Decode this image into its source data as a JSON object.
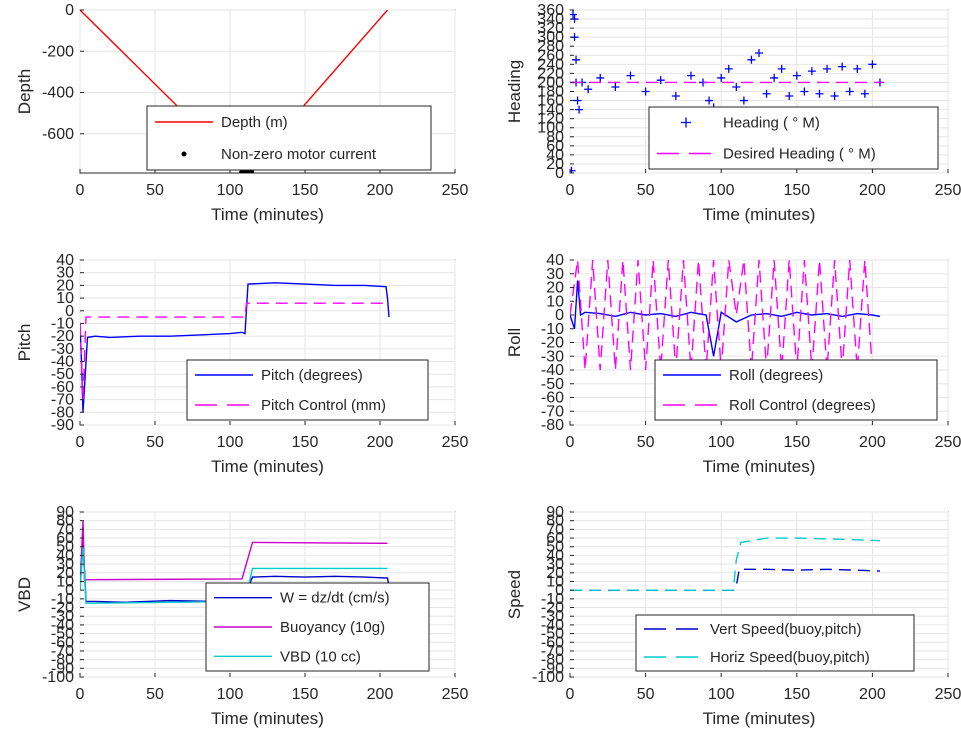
{
  "charts": [
    {
      "id": "depth",
      "type": "line",
      "xlabel": "Time (minutes)",
      "ylabel": "Depth",
      "xlim": [
        0,
        250
      ],
      "ylim": [
        -790,
        0
      ],
      "xticks": [
        0,
        50,
        100,
        150,
        200,
        250
      ],
      "yticks": [
        -600,
        -400,
        -200,
        0
      ],
      "grid": true,
      "legend": {
        "position": "bottom-right"
      },
      "series": [
        {
          "name": "Depth (m)",
          "color": "#ff0000",
          "style": "solid",
          "marker": "none",
          "x": [
            0,
            110,
            205
          ],
          "y": [
            0,
            -790,
            0
          ]
        },
        {
          "name": "Non-zero motor current",
          "color": "#000000",
          "style": "none",
          "marker": "dot",
          "x": [
            108,
            109,
            110,
            111,
            112,
            113,
            114
          ],
          "y": [
            -788,
            -790,
            -790,
            -790,
            -788,
            -785,
            -782
          ]
        }
      ]
    },
    {
      "id": "heading",
      "type": "line",
      "xlabel": "Time (minutes)",
      "ylabel": "Heading",
      "xlim": [
        0,
        250
      ],
      "ylim": [
        0,
        360
      ],
      "xticks": [
        0,
        50,
        100,
        150,
        200,
        250
      ],
      "yticks": [
        0,
        20,
        40,
        60,
        80,
        100,
        120,
        140,
        160,
        180,
        200,
        220,
        240,
        260,
        280,
        300,
        320,
        340,
        360
      ],
      "grid": true,
      "legend": {
        "position": "bottom-right"
      },
      "series": [
        {
          "name": "Heading ( ° M)",
          "color": "#0000ff",
          "style": "none",
          "marker": "plus",
          "x": [
            1,
            2,
            3,
            3,
            4,
            4,
            5,
            6,
            8,
            12,
            20,
            30,
            40,
            50,
            60,
            70,
            80,
            88,
            92,
            95,
            100,
            105,
            110,
            115,
            120,
            125,
            130,
            135,
            140,
            145,
            150,
            155,
            160,
            165,
            170,
            175,
            180,
            185,
            190,
            195,
            200,
            205
          ],
          "y": [
            5,
            350,
            340,
            300,
            250,
            200,
            160,
            140,
            200,
            185,
            210,
            190,
            215,
            180,
            205,
            170,
            215,
            200,
            160,
            145,
            210,
            230,
            190,
            160,
            250,
            265,
            175,
            210,
            230,
            170,
            215,
            180,
            225,
            175,
            230,
            170,
            235,
            180,
            230,
            175,
            240,
            200
          ]
        },
        {
          "name": "Desired Heading ( ° M)",
          "color": "#ff00ff",
          "style": "dashed",
          "marker": "none",
          "x": [
            0,
            207
          ],
          "y": [
            200,
            200
          ]
        }
      ]
    },
    {
      "id": "pitch",
      "type": "line",
      "xlabel": "Time (minutes)",
      "ylabel": "Pitch",
      "xlim": [
        0,
        250
      ],
      "ylim": [
        -90,
        40
      ],
      "xticks": [
        0,
        50,
        100,
        150,
        200,
        250
      ],
      "yticks": [
        -90,
        -80,
        -70,
        -60,
        -50,
        -40,
        -30,
        -20,
        -10,
        0,
        10,
        20,
        30,
        40
      ],
      "ytickLabels": [
        "-90",
        "-80",
        "-70",
        "-60",
        "-50",
        "-40",
        "-30",
        "-20",
        "-10",
        "0",
        "10",
        "20",
        "30",
        "40"
      ],
      "grid": true,
      "legend": {
        "position": "bottom-right"
      },
      "series": [
        {
          "name": "Pitch (degrees)",
          "color": "#0000ff",
          "style": "solid",
          "marker": "none",
          "x": [
            0,
            1,
            2,
            3,
            5,
            10,
            20,
            40,
            60,
            80,
            100,
            108,
            110,
            112,
            130,
            150,
            170,
            190,
            204,
            205,
            206
          ],
          "y": [
            -10,
            -40,
            -80,
            -60,
            -21,
            -20,
            -21,
            -20,
            -20,
            -19,
            -18,
            -17,
            -18,
            21,
            22,
            21,
            20,
            20,
            19,
            10,
            -5
          ]
        },
        {
          "name": "Pitch Control (mm)",
          "color": "#ff00ff",
          "style": "dashed",
          "marker": "none",
          "x": [
            0,
            2,
            4,
            8,
            110,
            111,
            205
          ],
          "y": [
            -10,
            -70,
            -5,
            -5,
            -5,
            6,
            6
          ]
        }
      ]
    },
    {
      "id": "roll",
      "type": "line",
      "xlabel": "Time (minutes)",
      "ylabel": "Roll",
      "xlim": [
        0,
        250
      ],
      "ylim": [
        -80,
        40
      ],
      "xticks": [
        0,
        50,
        100,
        150,
        200,
        250
      ],
      "yticks": [
        -80,
        -70,
        -60,
        -50,
        -40,
        -30,
        -20,
        -10,
        0,
        10,
        20,
        30,
        40
      ],
      "grid": true,
      "legend": {
        "position": "bottom-right"
      },
      "series": [
        {
          "name": "Roll (degrees)",
          "color": "#0000ff",
          "style": "solid",
          "marker": "none",
          "x": [
            0,
            3,
            5,
            7,
            10,
            20,
            30,
            40,
            50,
            60,
            70,
            80,
            90,
            95,
            100,
            110,
            120,
            130,
            140,
            150,
            160,
            170,
            180,
            190,
            200,
            205
          ],
          "y": [
            0,
            -10,
            25,
            0,
            2,
            1,
            -1,
            2,
            0,
            1,
            -1,
            2,
            0,
            -30,
            2,
            -5,
            0,
            1,
            -1,
            2,
            0,
            1,
            -1,
            1,
            0,
            -1
          ]
        },
        {
          "name": "Roll Control (degrees)",
          "color": "#ff00ff",
          "style": "dashed",
          "marker": "none",
          "x": [
            0,
            5,
            10,
            15,
            20,
            25,
            30,
            35,
            40,
            45,
            50,
            55,
            60,
            65,
            70,
            75,
            80,
            85,
            90,
            95,
            100,
            105,
            110,
            115,
            120,
            125,
            130,
            135,
            140,
            145,
            150,
            155,
            160,
            165,
            170,
            175,
            180,
            185,
            190,
            195,
            200,
            205
          ],
          "y": [
            0,
            40,
            -40,
            40,
            -40,
            40,
            -40,
            40,
            -40,
            40,
            -40,
            40,
            -40,
            40,
            -40,
            40,
            -40,
            40,
            -40,
            40,
            -40,
            40,
            0,
            40,
            -40,
            40,
            -40,
            40,
            -40,
            40,
            -40,
            40,
            -40,
            40,
            -40,
            40,
            -40,
            40,
            -40,
            40,
            -40,
            -45
          ]
        }
      ]
    },
    {
      "id": "vbd",
      "type": "line",
      "xlabel": "Time (minutes)",
      "ylabel": "VBD",
      "xlim": [
        0,
        250
      ],
      "ylim": [
        -100,
        90
      ],
      "xticks": [
        0,
        50,
        100,
        150,
        200,
        250
      ],
      "yticks": [
        -100,
        -90,
        -80,
        -70,
        -60,
        -50,
        -40,
        -30,
        -20,
        -10,
        0,
        10,
        20,
        30,
        40,
        50,
        60,
        70,
        80,
        90
      ],
      "grid": true,
      "legend": {
        "position": "bottom-right"
      },
      "series": [
        {
          "name": "W = dz/dt (cm/s)",
          "color": "#0000cc",
          "style": "solid",
          "marker": "none",
          "x": [
            0,
            2,
            4,
            10,
            30,
            60,
            90,
            108,
            110,
            115,
            130,
            150,
            170,
            190,
            205,
            206
          ],
          "y": [
            0,
            60,
            -13,
            -13,
            -14,
            -12,
            -13,
            -10,
            -5,
            15,
            16,
            15,
            16,
            15,
            14,
            5
          ]
        },
        {
          "name": "Buoyancy (10g)",
          "color": "#cc00cc",
          "style": "solid",
          "marker": "none",
          "x": [
            0,
            2,
            3,
            5,
            108,
            115,
            205
          ],
          "y": [
            0,
            80,
            12,
            12,
            13,
            55,
            54
          ]
        },
        {
          "name": "VBD (10 cc)",
          "color": "#00cccc",
          "style": "solid",
          "marker": "none",
          "x": [
            0,
            2,
            4,
            10,
            108,
            110,
            115,
            205
          ],
          "y": [
            0,
            50,
            -15,
            -15,
            -13,
            -13,
            25,
            25
          ]
        }
      ]
    },
    {
      "id": "speed",
      "type": "line",
      "xlabel": "Time (minutes)",
      "ylabel": "Speed",
      "xlim": [
        0,
        250
      ],
      "ylim": [
        -100,
        90
      ],
      "xticks": [
        0,
        50,
        100,
        150,
        200,
        250
      ],
      "yticks": [
        -100,
        -90,
        -80,
        -70,
        -60,
        -50,
        -40,
        -30,
        -20,
        -10,
        0,
        10,
        20,
        30,
        40,
        50,
        60,
        70,
        80,
        90
      ],
      "grid": true,
      "legend": {
        "position": "bottom-right"
      },
      "series": [
        {
          "name": "Vert Speed(buoy,pitch)",
          "color": "#0000cc",
          "style": "dashed",
          "marker": "none",
          "x": [
            0,
            108,
            110,
            112,
            130,
            150,
            170,
            190,
            205
          ],
          "y": [
            0,
            0,
            5,
            24,
            24,
            23,
            24,
            23,
            22
          ]
        },
        {
          "name": "Horiz Speed(buoy,pitch)",
          "color": "#00cccc",
          "style": "dashed",
          "marker": "none",
          "x": [
            0,
            108,
            110,
            113,
            130,
            150,
            170,
            190,
            205
          ],
          "y": [
            0,
            0,
            35,
            55,
            60,
            60,
            59,
            58,
            57
          ]
        }
      ]
    }
  ]
}
